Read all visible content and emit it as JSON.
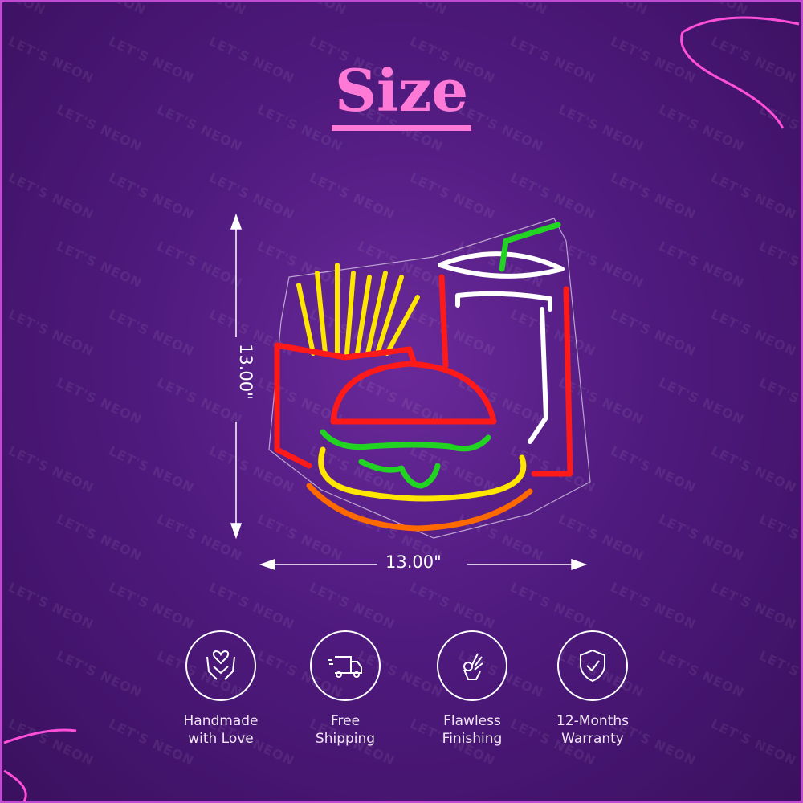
{
  "watermark": "LET'S NEON",
  "title": "Size",
  "dimensions": {
    "height": "13.00\"",
    "width": "13.00\""
  },
  "features": [
    {
      "icon": "heart-hands-icon",
      "line1": "Handmade",
      "line2": "with Love"
    },
    {
      "icon": "delivery-truck-icon",
      "line1": "Free",
      "line2": "Shipping"
    },
    {
      "icon": "ok-hand-icon",
      "line1": "Flawless",
      "line2": "Finishing"
    },
    {
      "icon": "shield-check-icon",
      "line1": "12-Months",
      "line2": "Warranty"
    }
  ],
  "colors": {
    "title": "#ff7ad6",
    "neon_red": "#ff1a1a",
    "neon_yellow": "#ffe600",
    "neon_green": "#22d422",
    "neon_orange": "#ff6a00",
    "neon_white": "#ffffff"
  }
}
